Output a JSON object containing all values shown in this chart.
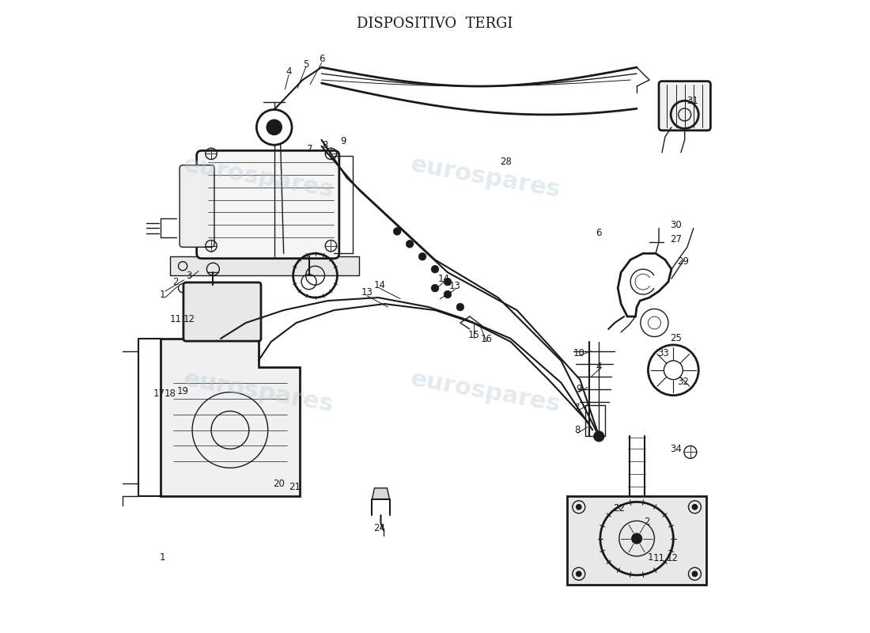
{
  "title": "DISPOSITIVO  TERGI",
  "title_fontsize": 13,
  "title_font": "serif",
  "background_color": "#ffffff",
  "watermark_text": "eurospares",
  "watermark_color": "#b8ccd8",
  "watermark_alpha": 0.38,
  "fig_width": 11.0,
  "fig_height": 8.0,
  "dpi": 100,
  "line_color": "#1a1a1a",
  "label_fontsize": 8.5
}
